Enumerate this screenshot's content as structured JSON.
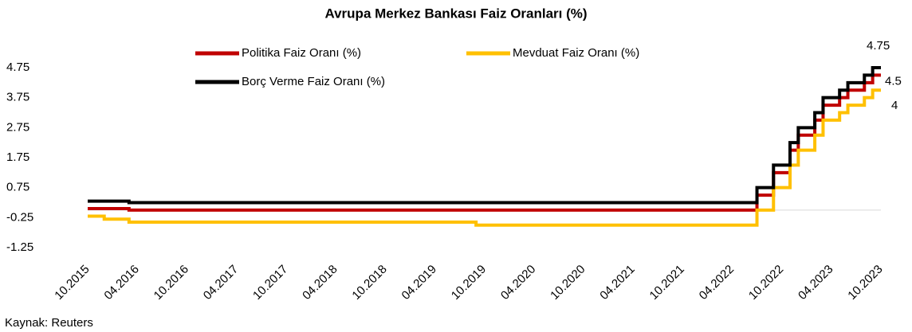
{
  "chart_data": {
    "type": "step-line",
    "title": "Avrupa Merkez Bankası Faiz Oranları (%)",
    "source": "Kaynak: Reuters",
    "x": [
      "10.2015",
      "12.2015",
      "03.2016",
      "09.2019",
      "07.2022",
      "09.2022",
      "11.2022",
      "12.2022",
      "02.2023",
      "03.2023",
      "05.2023",
      "06.2023",
      "08.2023",
      "09.2023",
      "10.2023"
    ],
    "series": [
      {
        "name": "Politika Faiz Oranı (%)",
        "color": "#c00000",
        "values": [
          0.05,
          0.05,
          0,
          0,
          0.5,
          1.25,
          2,
          2.5,
          3,
          3.5,
          3.75,
          4,
          4.25,
          4.5,
          4.5
        ]
      },
      {
        "name": "Mevduat Faiz Oranı (%)",
        "color": "#ffc000",
        "values": [
          -0.2,
          -0.3,
          -0.4,
          -0.5,
          0,
          0.75,
          1.5,
          2,
          2.5,
          3,
          3.25,
          3.5,
          3.75,
          4,
          4
        ]
      },
      {
        "name": "Borç Verme Faiz Oranı (%)",
        "color": "#000000",
        "values": [
          0.3,
          0.3,
          0.25,
          0.25,
          0.75,
          1.5,
          2.25,
          2.75,
          3.25,
          3.75,
          4,
          4.25,
          4.5,
          4.75,
          4.75
        ]
      }
    ],
    "xlim": [
      "10.2015",
      "10.2023"
    ],
    "xticks": [
      "10.2015",
      "04.2016",
      "10.2016",
      "04.2017",
      "10.2017",
      "04.2018",
      "10.2018",
      "04.2019",
      "10.2019",
      "04.2020",
      "10.2020",
      "04.2021",
      "10.2021",
      "04.2022",
      "10.2022",
      "04.2023",
      "10.2023"
    ],
    "ylim": [
      -1.25,
      4.75
    ],
    "yticks": [
      -1.25,
      -0.25,
      0.75,
      1.75,
      2.75,
      3.75,
      4.75
    ],
    "grid": false
  }
}
